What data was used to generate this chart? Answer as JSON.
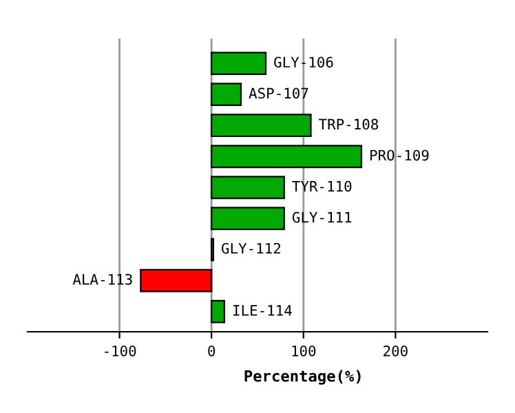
{
  "chart_data": {
    "type": "bar",
    "orientation": "horizontal",
    "xlabel": "Percentage(%)",
    "categories": [
      "GLY-106",
      "ASP-107",
      "TRP-108",
      "PRO-109",
      "TYR-110",
      "GLY-111",
      "GLY-112",
      "ALA-113",
      "ILE-114"
    ],
    "values": [
      59,
      32,
      108,
      163,
      79,
      79,
      2,
      -77,
      14
    ],
    "colors": [
      "#00aa00",
      "#00aa00",
      "#00aa00",
      "#00aa00",
      "#00aa00",
      "#00aa00",
      "#00aa00",
      "#ff0000",
      "#00aa00"
    ],
    "xlim": [
      -200,
      300
    ],
    "xticks": [
      -100,
      0,
      100,
      200
    ],
    "grid": "x",
    "legend": false
  }
}
